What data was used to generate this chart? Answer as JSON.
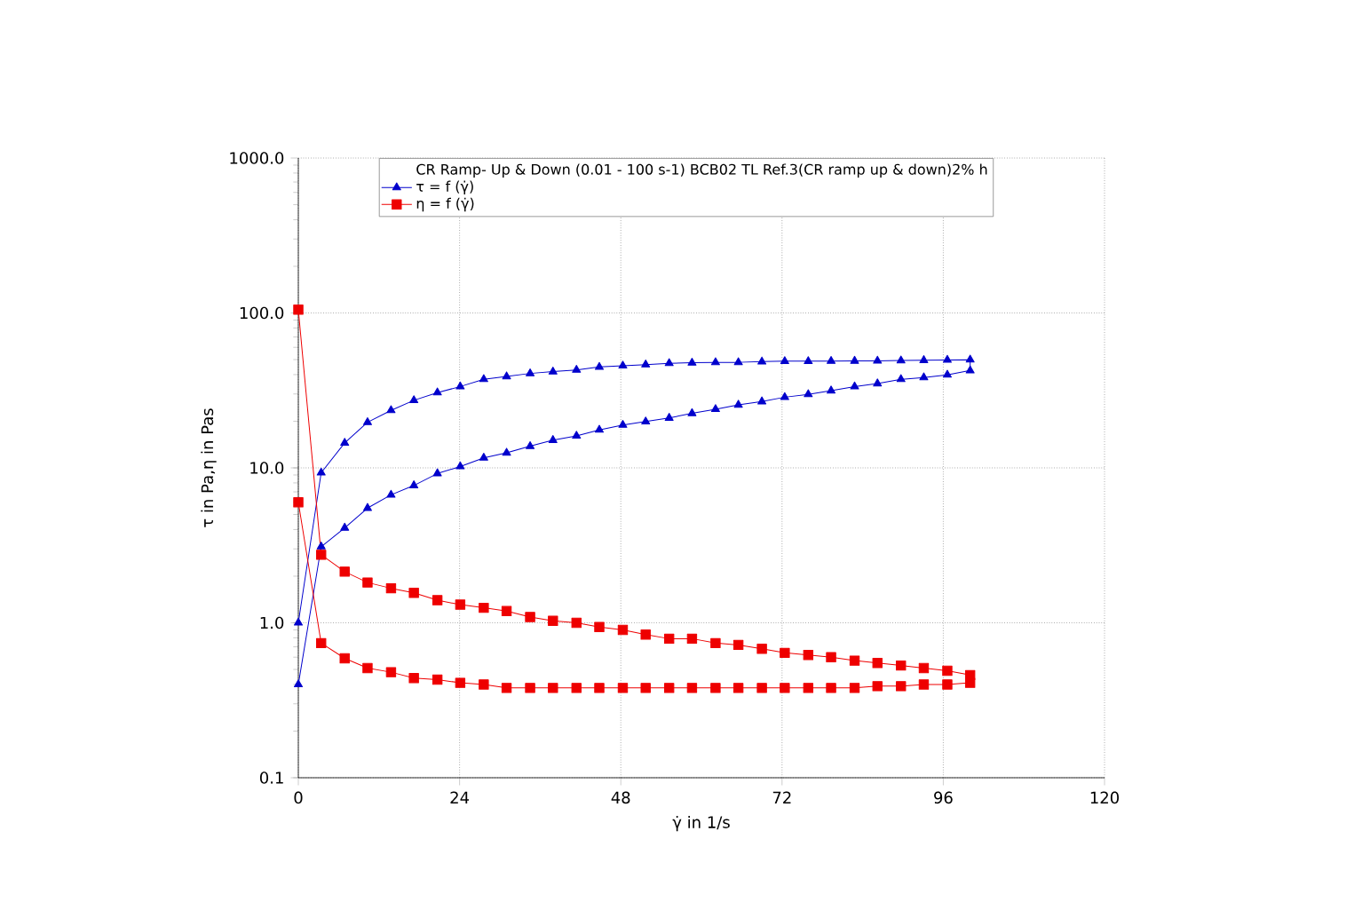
{
  "chart_data": {
    "type": "line",
    "xlabel": "γ̇ in 1/s",
    "ylabel": "τ in Pa,η in Pas",
    "legend_title": "CR Ramp- Up & Down (0.01 - 100 s-1) BCB02 TL Ref.3(CR ramp up & down)2% h",
    "log": "y",
    "grid": true,
    "legend": "top",
    "xlim": [
      0,
      120
    ],
    "xticks": [
      0,
      24,
      48,
      72,
      96,
      120
    ],
    "ylim": [
      0.1,
      1000
    ],
    "yticks": [
      {
        "value": 0.1,
        "label": "0.1"
      },
      {
        "value": 1,
        "label": "1.0"
      },
      {
        "value": 10,
        "label": "10.0"
      },
      {
        "value": 100,
        "label": "100.0"
      },
      {
        "value": 1000,
        "label": "1000.0"
      }
    ],
    "series": [
      {
        "name": "τ = f (γ̇)",
        "color": "#0000cc",
        "marker": "triangle",
        "x": [
          0,
          3.4,
          6.9,
          10.3,
          13.8,
          17.2,
          20.7,
          24.1,
          27.6,
          31,
          34.5,
          37.9,
          41.4,
          44.8,
          48.3,
          51.7,
          55.2,
          58.6,
          62.1,
          65.5,
          69,
          72.4,
          75.9,
          79.3,
          82.8,
          86.2,
          89.7,
          93.1,
          96.6,
          100,
          100,
          96.6,
          93.1,
          89.7,
          86.2,
          82.8,
          79.3,
          75.9,
          72.4,
          69,
          65.5,
          62.1,
          58.6,
          55.2,
          51.7,
          48.3,
          44.8,
          41.4,
          37.9,
          34.5,
          31,
          27.6,
          24.1,
          20.7,
          17.2,
          13.8,
          10.3,
          6.9,
          3.4,
          0
        ],
        "values": [
          1.0,
          9.3,
          14.5,
          19.7,
          23.5,
          27.3,
          30.6,
          33.5,
          37.3,
          38.9,
          40.7,
          41.8,
          42.9,
          44.8,
          45.6,
          46.4,
          47.3,
          47.7,
          48.0,
          48.0,
          48.5,
          48.8,
          48.8,
          48.9,
          49.0,
          49.1,
          49.3,
          49.5,
          49.7,
          49.9,
          42.5,
          39.9,
          38.3,
          37.3,
          35.0,
          33.5,
          31.5,
          29.8,
          28.6,
          26.8,
          25.5,
          23.9,
          22.5,
          21.0,
          19.9,
          18.9,
          17.6,
          16.1,
          15.1,
          13.8,
          12.5,
          11.6,
          10.2,
          9.2,
          7.7,
          6.7,
          5.5,
          4.1,
          3.1,
          0.4
        ]
      },
      {
        "name": "η = f (γ̇)",
        "color": "#ee0000",
        "marker": "square",
        "x": [
          0,
          3.4,
          6.9,
          10.3,
          13.8,
          17.2,
          20.7,
          24.1,
          27.6,
          31,
          34.5,
          37.9,
          41.4,
          44.8,
          48.3,
          51.7,
          55.2,
          58.6,
          62.1,
          65.5,
          69,
          72.4,
          75.9,
          79.3,
          82.8,
          86.2,
          89.7,
          93.1,
          96.6,
          100,
          100,
          96.6,
          93.1,
          89.7,
          86.2,
          82.8,
          79.3,
          75.9,
          72.4,
          69,
          65.5,
          62.1,
          58.6,
          55.2,
          51.7,
          48.3,
          44.8,
          41.4,
          37.9,
          34.5,
          31,
          27.6,
          24.1,
          20.7,
          17.2,
          13.8,
          10.3,
          6.9,
          3.4,
          0
        ],
        "values": [
          105,
          2.75,
          2.14,
          1.82,
          1.67,
          1.56,
          1.4,
          1.31,
          1.25,
          1.19,
          1.09,
          1.03,
          1.0,
          0.94,
          0.9,
          0.84,
          0.79,
          0.79,
          0.74,
          0.72,
          0.68,
          0.64,
          0.62,
          0.6,
          0.57,
          0.55,
          0.53,
          0.51,
          0.49,
          0.46,
          0.41,
          0.4,
          0.4,
          0.39,
          0.39,
          0.38,
          0.38,
          0.38,
          0.38,
          0.38,
          0.38,
          0.38,
          0.38,
          0.38,
          0.38,
          0.38,
          0.38,
          0.38,
          0.38,
          0.38,
          0.38,
          0.4,
          0.41,
          0.43,
          0.44,
          0.48,
          0.51,
          0.59,
          0.74,
          6.0
        ]
      }
    ]
  }
}
